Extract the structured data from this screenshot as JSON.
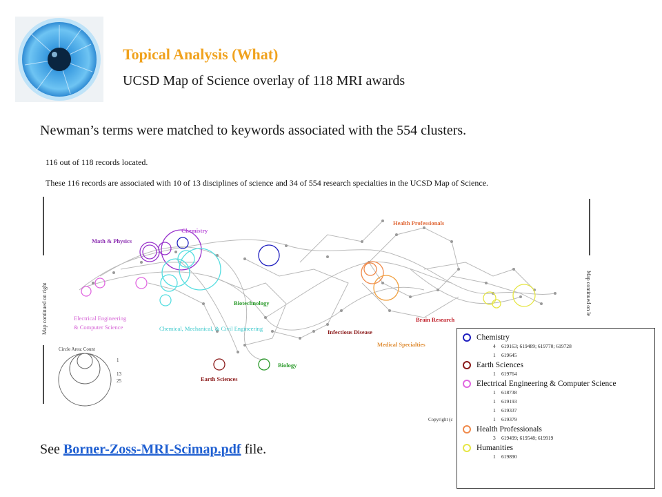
{
  "header": {
    "title": "Topical Analysis (What)",
    "subtitle": "UCSD Map of Science overlay of 118 MRI awards"
  },
  "intro": "Newman’s terms were matched to keywords associated with the 554 clusters.",
  "map_header": {
    "located": "116 out of 118 records located.",
    "associated": "These 116 records are associated with 10 of 13 disciplines of science and 34 of 554 research specialties in the UCSD Map of Science."
  },
  "map": {
    "left_continuation": "Map continued on right",
    "right_continuation": "Map continued on le",
    "labels": {
      "math_physics": "Math & Physics",
      "chemistry": "Chemistry",
      "health_professionals": "Health Professionals",
      "biotechnology": "Biotechnology",
      "eecs_line1": "Electrical Engineering",
      "eecs_line2": "& Computer Science",
      "chem_mech_civil": "Chemical, Mechanical, & Civil Engineering",
      "infectious_disease": "Infectious Disease",
      "brain_research": "Brain Research",
      "medical_specialties": "Medical Specialties",
      "earth_sciences": "Earth Sciences",
      "biology": "Biology"
    },
    "circle_area_legend": {
      "title": "Circle Area: Count",
      "values": [
        "1",
        "13",
        "25"
      ]
    },
    "copyright": "Copyright (c"
  },
  "see_prefix": "See ",
  "file_link": "Borner-Zoss-MRI-Scimap.pdf",
  "see_suffix": " file.",
  "legend": [
    {
      "name": "Chemistry",
      "color": "#1f1fbf",
      "rows": [
        {
          "count": "4",
          "ids": "619163; 619489; 619770; 619728"
        },
        {
          "count": "1",
          "ids": "619645"
        }
      ]
    },
    {
      "name": "Earth Sciences",
      "color": "#8b1a1a",
      "rows": [
        {
          "count": "1",
          "ids": "619764"
        }
      ]
    },
    {
      "name": "Electrical Engineering & Computer Science",
      "color": "#e066e0",
      "rows": [
        {
          "count": "1",
          "ids": "618738"
        },
        {
          "count": "1",
          "ids": "619193"
        },
        {
          "count": "1",
          "ids": "619337"
        },
        {
          "count": "1",
          "ids": "619379"
        }
      ]
    },
    {
      "name": "Health Professionals",
      "color": "#f08a4b",
      "rows": [
        {
          "count": "3",
          "ids": "619499; 619548; 619919"
        }
      ]
    },
    {
      "name": "Humanities",
      "color": "#e6e645",
      "rows": [
        {
          "count": "1",
          "ids": "619890"
        }
      ]
    }
  ]
}
